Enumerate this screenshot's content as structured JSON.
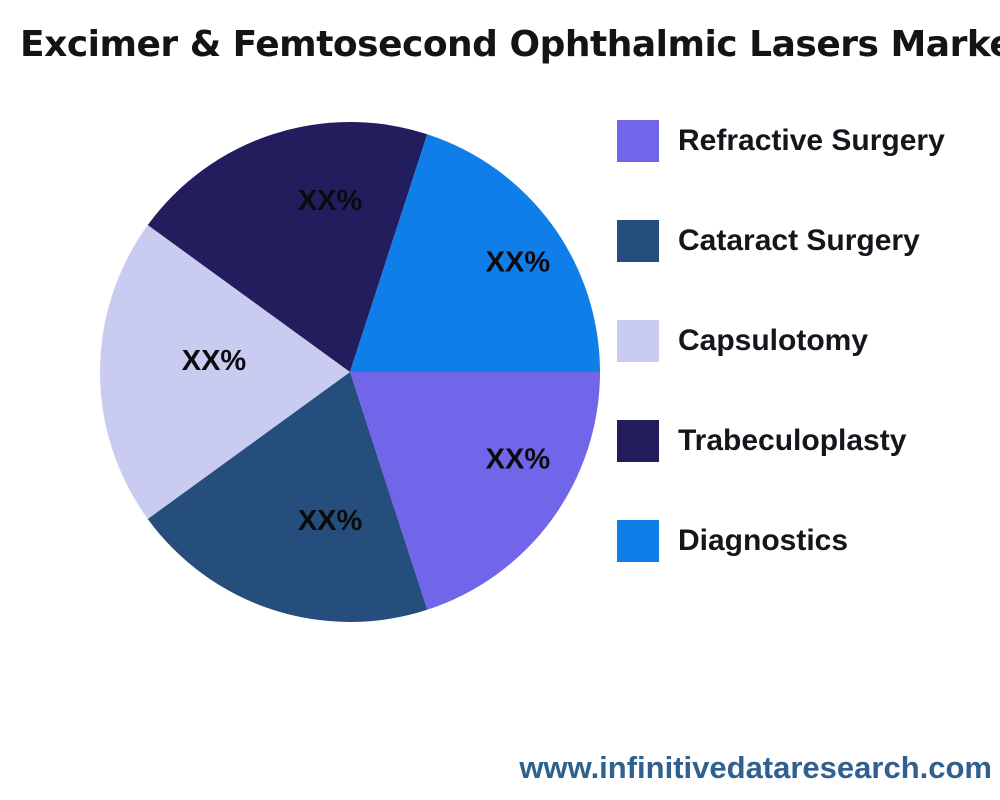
{
  "title": "Excimer & Femtosecond Ophthalmic Lasers Market",
  "chart_data": {
    "type": "pie",
    "title": "Excimer & Femtosecond Ophthalmic Lasers Market",
    "categories": [
      "Refractive Surgery",
      "Cataract Surgery",
      "Capsulotomy",
      "Trabeculoplasty",
      "Diagnostics"
    ],
    "values": [
      20,
      20,
      20,
      20,
      20
    ],
    "value_labels": [
      "XX%",
      "XX%",
      "XX%",
      "XX%",
      "XX%"
    ],
    "colors": [
      "#7165e9",
      "#254e7c",
      "#c9ccf0",
      "#221d5d",
      "#107ee8"
    ],
    "start_angle_deg": 0,
    "direction": "clockwise",
    "legend_position": "right"
  },
  "legend": {
    "items": [
      {
        "label": "Refractive Surgery",
        "color": "#7165e9"
      },
      {
        "label": "Cataract Surgery",
        "color": "#254e7c"
      },
      {
        "label": "Capsulotomy",
        "color": "#c9ccf0"
      },
      {
        "label": "Trabeculoplasty",
        "color": "#221d5d"
      },
      {
        "label": "Diagnostics",
        "color": "#107ee8"
      }
    ]
  },
  "footer": {
    "website": "www.infinitivedataresearch.com"
  }
}
